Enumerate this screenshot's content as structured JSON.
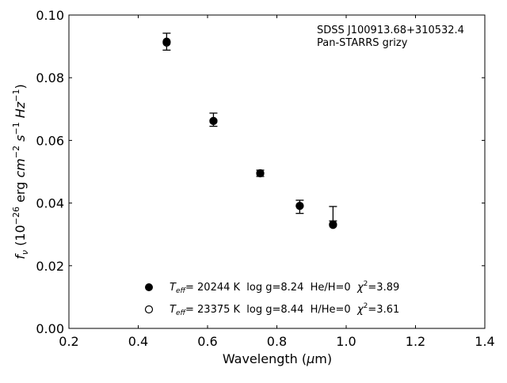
{
  "chart_data": {
    "type": "scatter",
    "annotation": [
      "SDSS J100913.68+310532.4",
      "Pan-STARRS grizy"
    ],
    "xlabel": {
      "base": "Wavelength (",
      "greek": "μ",
      "rest": "m)"
    },
    "ylabel": {
      "f": "f",
      "f_sub": "ν",
      "lp": " (10",
      "lp_exp": "−26",
      "erg": " erg ",
      "cm": "cm",
      "cm_exp": "−2",
      "s": " s",
      "s_exp": "−1",
      "hz": " Hz",
      "hz_exp": "−1",
      "rp": ")"
    },
    "xlim": [
      0.2,
      1.4
    ],
    "ylim": [
      0.0,
      0.1
    ],
    "xticks": [
      0.2,
      0.4,
      0.6,
      0.8,
      1.0,
      1.2,
      1.4
    ],
    "xtick_labels": [
      "0.2",
      "0.4",
      "0.6",
      "0.8",
      "1.0",
      "1.2",
      "1.4"
    ],
    "yticks": [
      0.0,
      0.02,
      0.04,
      0.06,
      0.08,
      0.1
    ],
    "ytick_labels": [
      "0.00",
      "0.02",
      "0.04",
      "0.06",
      "0.08",
      "0.10"
    ],
    "grid": false,
    "legend_position": "bottom-center",
    "observed": {
      "x": [
        0.482,
        0.617,
        0.752,
        0.866,
        0.962
      ],
      "y": [
        0.0915,
        0.0666,
        0.0495,
        0.0388,
        0.0366
      ],
      "yerr": [
        0.0027,
        0.0021,
        0.001,
        0.0021,
        0.0023
      ]
    },
    "series": [
      {
        "marker": "filled-circle",
        "x": [
          0.482,
          0.617,
          0.752,
          0.866,
          0.962
        ],
        "y": [
          0.0915,
          0.0662,
          0.0495,
          0.0391,
          0.033
        ],
        "legend": {
          "T": "T",
          "T_sub": "eff",
          "main": "= 20244 K  log g=8.24  He/H=0  ",
          "chi": "χ",
          "chi_exp": "2",
          "chi_val": "=3.89"
        }
      },
      {
        "marker": "open-circle",
        "x": [
          0.482,
          0.617,
          0.752,
          0.866,
          0.962
        ],
        "y": [
          0.0912,
          0.0662,
          0.0495,
          0.0391,
          0.0332
        ],
        "legend": {
          "T": "T",
          "T_sub": "eff",
          "main": "= 23375 K  log g=8.44  H/He=0  ",
          "chi": "χ",
          "chi_exp": "2",
          "chi_val": "=3.61"
        }
      }
    ]
  }
}
